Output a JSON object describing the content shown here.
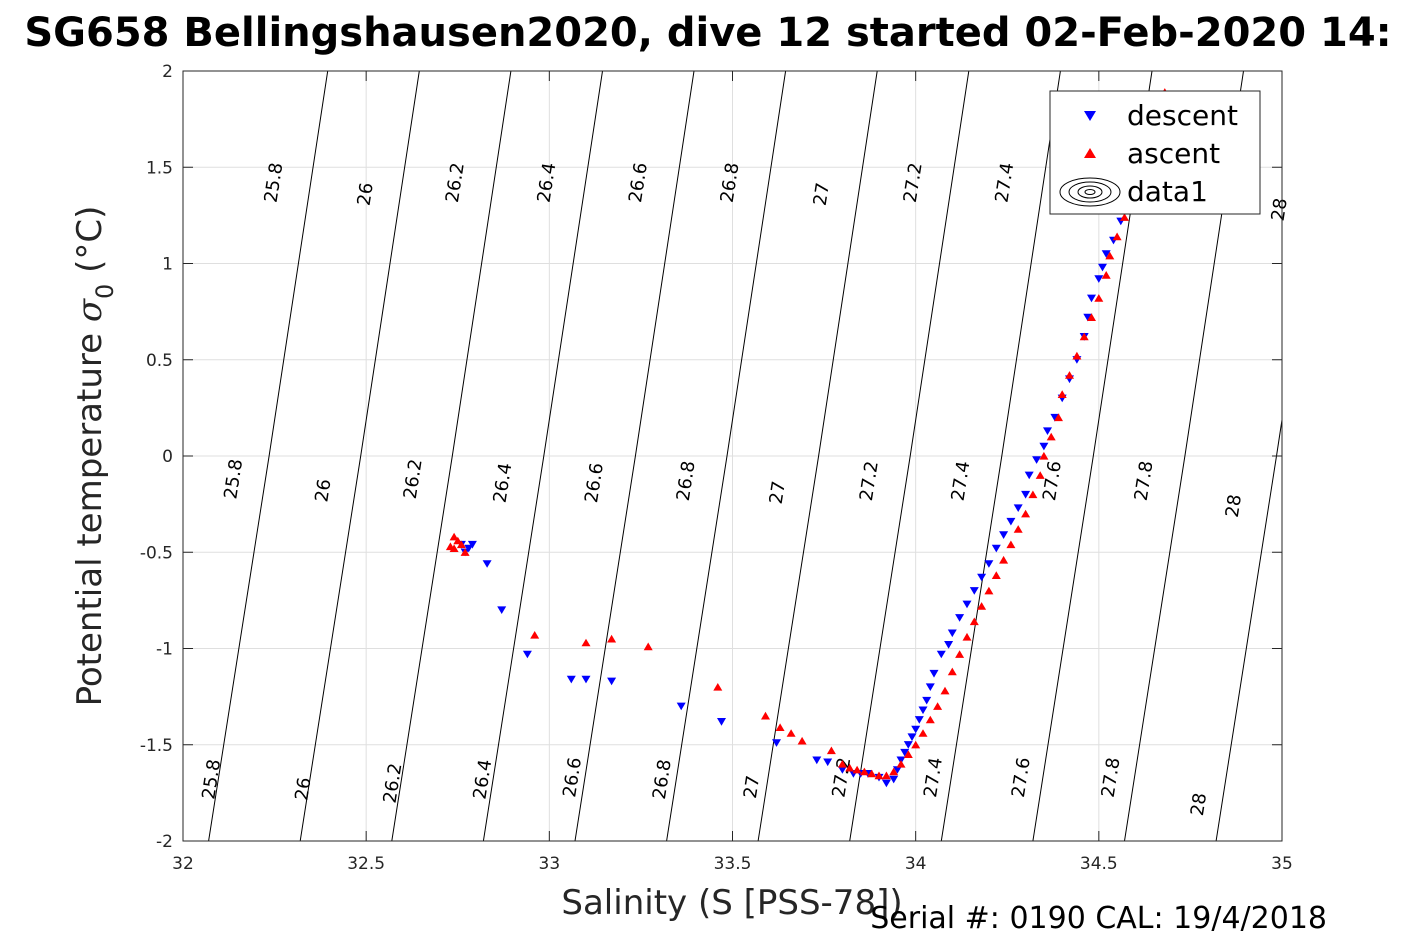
{
  "chart_data": {
    "type": "scatter",
    "title": "SG658 Bellingshausen2020, dive 12 started 02-Feb-2020 14:",
    "xlabel": "Salinity (S [PSS-78])",
    "ylabel_main": "Potential temperature ",
    "ylabel_sym": "σ",
    "ylabel_sub": "0",
    "ylabel_unit": " (°C)",
    "xlim": [
      32,
      35
    ],
    "ylim": [
      -2,
      2
    ],
    "x_ticks": [
      32,
      32.5,
      33,
      33.5,
      34,
      34.5,
      35
    ],
    "x_tick_labels": [
      "32",
      "32.5",
      "33",
      "33.5",
      "34",
      "34.5",
      "35"
    ],
    "y_ticks": [
      -2,
      -1.5,
      -1,
      -0.5,
      0,
      0.5,
      1,
      1.5,
      2
    ],
    "y_tick_labels": [
      "-2",
      "-1.5",
      "-1",
      "-0.5",
      "0",
      "0.5",
      "1",
      "1.5",
      "2"
    ],
    "grid": true,
    "legend_position": "top-right",
    "colors": {
      "descent": "#0000ff",
      "ascent": "#ff0000",
      "contour": "#000000",
      "grid": "#dfdfdf"
    },
    "contours": [
      {
        "label": "25.8",
        "points": [
          [
            32.07,
            -2
          ],
          [
            32.235,
            0
          ],
          [
            32.395,
            2
          ]
        ],
        "label_at": [
          [
            32.08,
            -1.68
          ],
          [
            32.14,
            -0.12
          ],
          [
            32.25,
            1.42
          ]
        ]
      },
      {
        "label": "26",
        "points": [
          [
            32.32,
            -2
          ],
          [
            32.485,
            0
          ],
          [
            32.645,
            2
          ]
        ],
        "label_at": [
          [
            32.33,
            -1.73
          ],
          [
            32.385,
            -0.18
          ],
          [
            32.5,
            1.36
          ]
        ]
      },
      {
        "label": "26.2",
        "points": [
          [
            32.57,
            -2
          ],
          [
            32.735,
            0
          ],
          [
            32.895,
            2
          ]
        ],
        "label_at": [
          [
            32.575,
            -1.7
          ],
          [
            32.63,
            -0.12
          ],
          [
            32.745,
            1.42
          ]
        ]
      },
      {
        "label": "26.4",
        "points": [
          [
            32.82,
            -2
          ],
          [
            32.985,
            0
          ],
          [
            33.145,
            2
          ]
        ],
        "label_at": [
          [
            32.82,
            -1.68
          ],
          [
            32.875,
            -0.14
          ],
          [
            32.995,
            1.42
          ]
        ]
      },
      {
        "label": "26.6",
        "points": [
          [
            33.07,
            -2
          ],
          [
            33.235,
            0
          ],
          [
            33.395,
            2
          ]
        ],
        "label_at": [
          [
            33.065,
            -1.67
          ],
          [
            33.125,
            -0.14
          ],
          [
            33.245,
            1.42
          ]
        ]
      },
      {
        "label": "26.8",
        "points": [
          [
            33.32,
            -2
          ],
          [
            33.485,
            0
          ],
          [
            33.645,
            2
          ]
        ],
        "label_at": [
          [
            33.31,
            -1.68
          ],
          [
            33.375,
            -0.13
          ],
          [
            33.495,
            1.42
          ]
        ]
      },
      {
        "label": "27",
        "points": [
          [
            33.57,
            -2
          ],
          [
            33.735,
            0
          ],
          [
            33.895,
            2
          ]
        ],
        "label_at": [
          [
            33.555,
            -1.72
          ],
          [
            33.625,
            -0.19
          ],
          [
            33.745,
            1.36
          ]
        ]
      },
      {
        "label": "27.2",
        "points": [
          [
            33.82,
            -2
          ],
          [
            33.985,
            0
          ],
          [
            34.145,
            2
          ]
        ],
        "label_at": [
          [
            33.8,
            -1.67
          ],
          [
            33.875,
            -0.13
          ],
          [
            33.995,
            1.42
          ]
        ]
      },
      {
        "label": "27.4",
        "points": [
          [
            34.07,
            -2
          ],
          [
            34.235,
            0
          ],
          [
            34.395,
            2
          ]
        ],
        "label_at": [
          [
            34.05,
            -1.67
          ],
          [
            34.125,
            -0.13
          ],
          [
            34.245,
            1.42
          ]
        ]
      },
      {
        "label": "27.6",
        "points": [
          [
            34.32,
            -2
          ],
          [
            34.485,
            0
          ],
          [
            34.645,
            2
          ]
        ],
        "label_at": [
          [
            34.29,
            -1.67
          ],
          [
            34.375,
            -0.13
          ],
          [
            34.495,
            1.42
          ]
        ]
      },
      {
        "label": "27.8",
        "points": [
          [
            34.57,
            -2
          ],
          [
            34.735,
            0
          ],
          [
            34.895,
            2
          ]
        ],
        "label_at": [
          [
            34.535,
            -1.67
          ],
          [
            34.625,
            -0.13
          ],
          [
            34.745,
            1.42
          ]
        ]
      },
      {
        "label": "28",
        "points": [
          [
            34.82,
            -2
          ],
          [
            34.985,
            0
          ],
          [
            35.145,
            2
          ]
        ],
        "label_at": [
          [
            34.775,
            -1.81
          ],
          [
            34.87,
            -0.26
          ],
          [
            34.995,
            1.28
          ]
        ]
      }
    ],
    "series": [
      {
        "name": "descent",
        "marker": "triangle-down",
        "points": [
          [
            32.76,
            -0.46
          ],
          [
            32.78,
            -0.48
          ],
          [
            32.77,
            -0.5
          ],
          [
            32.79,
            -0.46
          ],
          [
            32.83,
            -0.56
          ],
          [
            32.87,
            -0.8
          ],
          [
            32.94,
            -1.03
          ],
          [
            33.06,
            -1.16
          ],
          [
            33.1,
            -1.16
          ],
          [
            33.17,
            -1.17
          ],
          [
            33.36,
            -1.3
          ],
          [
            33.47,
            -1.38
          ],
          [
            33.62,
            -1.49
          ],
          [
            33.73,
            -1.58
          ],
          [
            33.76,
            -1.59
          ],
          [
            33.8,
            -1.63
          ],
          [
            33.83,
            -1.65
          ],
          [
            33.85,
            -1.65
          ],
          [
            33.87,
            -1.65
          ],
          [
            33.9,
            -1.67
          ],
          [
            33.92,
            -1.7
          ],
          [
            33.94,
            -1.68
          ],
          [
            33.95,
            -1.63
          ],
          [
            33.96,
            -1.58
          ],
          [
            33.97,
            -1.54
          ],
          [
            33.98,
            -1.5
          ],
          [
            33.99,
            -1.46
          ],
          [
            34.0,
            -1.42
          ],
          [
            34.01,
            -1.37
          ],
          [
            34.02,
            -1.32
          ],
          [
            34.03,
            -1.27
          ],
          [
            34.04,
            -1.2
          ],
          [
            34.05,
            -1.13
          ],
          [
            34.07,
            -1.03
          ],
          [
            34.09,
            -0.98
          ],
          [
            34.1,
            -0.92
          ],
          [
            34.12,
            -0.84
          ],
          [
            34.14,
            -0.77
          ],
          [
            34.16,
            -0.7
          ],
          [
            34.18,
            -0.63
          ],
          [
            34.2,
            -0.56
          ],
          [
            34.22,
            -0.48
          ],
          [
            34.24,
            -0.41
          ],
          [
            34.26,
            -0.34
          ],
          [
            34.28,
            -0.27
          ],
          [
            34.3,
            -0.2
          ],
          [
            34.31,
            -0.1
          ],
          [
            34.33,
            -0.02
          ],
          [
            34.35,
            0.05
          ],
          [
            34.36,
            0.13
          ],
          [
            34.38,
            0.2
          ],
          [
            34.4,
            0.3
          ],
          [
            34.42,
            0.4
          ],
          [
            34.44,
            0.5
          ],
          [
            34.46,
            0.62
          ],
          [
            34.47,
            0.72
          ],
          [
            34.48,
            0.82
          ],
          [
            34.5,
            0.92
          ],
          [
            34.51,
            0.98
          ],
          [
            34.52,
            1.05
          ],
          [
            34.54,
            1.12
          ],
          [
            34.56,
            1.22
          ],
          [
            34.58,
            1.3
          ],
          [
            34.6,
            1.4
          ],
          [
            34.63,
            1.55
          ],
          [
            34.66,
            1.68
          ],
          [
            34.72,
            1.28
          ]
        ]
      },
      {
        "name": "ascent",
        "marker": "triangle-up",
        "points": [
          [
            32.74,
            -0.42
          ],
          [
            32.75,
            -0.44
          ],
          [
            32.76,
            -0.46
          ],
          [
            32.74,
            -0.48
          ],
          [
            32.77,
            -0.5
          ],
          [
            32.73,
            -0.47
          ],
          [
            32.96,
            -0.93
          ],
          [
            33.1,
            -0.97
          ],
          [
            33.17,
            -0.95
          ],
          [
            33.27,
            -0.99
          ],
          [
            33.46,
            -1.2
          ],
          [
            33.59,
            -1.35
          ],
          [
            33.63,
            -1.41
          ],
          [
            33.66,
            -1.44
          ],
          [
            33.69,
            -1.48
          ],
          [
            33.77,
            -1.53
          ],
          [
            33.8,
            -1.6
          ],
          [
            33.82,
            -1.62
          ],
          [
            33.84,
            -1.63
          ],
          [
            33.86,
            -1.64
          ],
          [
            33.88,
            -1.65
          ],
          [
            33.9,
            -1.66
          ],
          [
            33.92,
            -1.66
          ],
          [
            33.94,
            -1.64
          ],
          [
            33.96,
            -1.6
          ],
          [
            33.98,
            -1.55
          ],
          [
            34.0,
            -1.5
          ],
          [
            34.02,
            -1.44
          ],
          [
            34.04,
            -1.37
          ],
          [
            34.06,
            -1.3
          ],
          [
            34.08,
            -1.22
          ],
          [
            34.1,
            -1.12
          ],
          [
            34.12,
            -1.03
          ],
          [
            34.14,
            -0.94
          ],
          [
            34.16,
            -0.86
          ],
          [
            34.18,
            -0.78
          ],
          [
            34.2,
            -0.7
          ],
          [
            34.22,
            -0.62
          ],
          [
            34.24,
            -0.54
          ],
          [
            34.26,
            -0.46
          ],
          [
            34.28,
            -0.38
          ],
          [
            34.3,
            -0.3
          ],
          [
            34.32,
            -0.2
          ],
          [
            34.34,
            -0.1
          ],
          [
            34.35,
            0.0
          ],
          [
            34.37,
            0.1
          ],
          [
            34.39,
            0.2
          ],
          [
            34.4,
            0.32
          ],
          [
            34.42,
            0.42
          ],
          [
            34.44,
            0.52
          ],
          [
            34.46,
            0.62
          ],
          [
            34.48,
            0.72
          ],
          [
            34.5,
            0.82
          ],
          [
            34.52,
            0.94
          ],
          [
            34.53,
            1.04
          ],
          [
            34.55,
            1.14
          ],
          [
            34.57,
            1.24
          ],
          [
            34.6,
            1.36
          ],
          [
            34.64,
            1.6
          ],
          [
            34.68,
            1.89
          ],
          [
            34.72,
            1.3
          ]
        ]
      }
    ],
    "legend": {
      "entries": [
        "descent",
        "ascent",
        "data1"
      ]
    }
  },
  "footer": {
    "serial": "Serial #: 0190  CAL: 19/4/2018"
  }
}
